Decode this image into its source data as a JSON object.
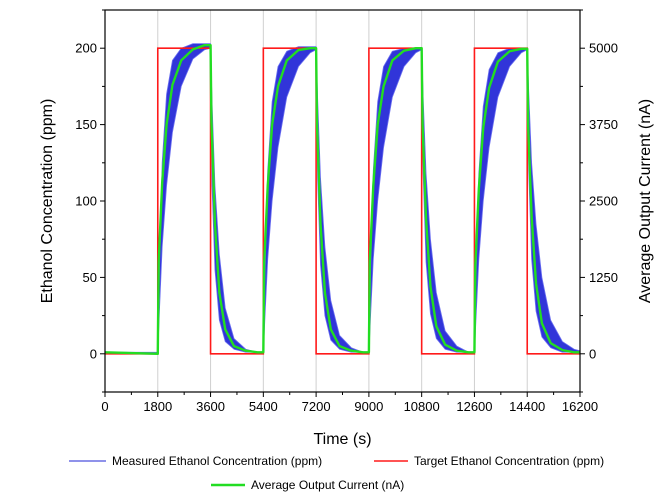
{
  "chart_data": {
    "type": "line",
    "title": "",
    "xlabel": "Time (s)",
    "ylabel": "Ethanol Concentration (ppm)",
    "y2label": "Average Output Current (nA)",
    "xlim": [
      0,
      16200
    ],
    "ylim": [
      -25,
      225
    ],
    "y2lim": [
      -625,
      5625
    ],
    "x_ticks": [
      0,
      1800,
      3600,
      5400,
      7200,
      9000,
      10800,
      12600,
      14400,
      16200
    ],
    "x_tick_labels": [
      "0",
      "1800",
      "3600",
      "5400",
      "7200",
      "9000",
      "10800",
      "12600",
      "14400",
      "16200"
    ],
    "y_ticks": [
      0,
      50,
      100,
      150,
      200
    ],
    "y_tick_labels": [
      "0",
      "50",
      "100",
      "150",
      "200"
    ],
    "y2_ticks": [
      0,
      1250,
      2500,
      3750,
      5000
    ],
    "y2_tick_labels": [
      "0",
      "1250",
      "2500",
      "3750",
      "5000"
    ],
    "grid": true,
    "grid_axis": "x",
    "legend_position": "bottom",
    "series": [
      {
        "name": "Measured Ethanol Concentration (ppm)",
        "color": "#1f24d6",
        "description_type": "band",
        "x": [
          0,
          1800,
          1850,
          1950,
          2100,
          2300,
          2600,
          3000,
          3400,
          3600,
          3650,
          3750,
          3900,
          4100,
          4400,
          4800,
          5200,
          5400,
          5450,
          5550,
          5700,
          5900,
          6200,
          6600,
          7000,
          7200,
          7250,
          7350,
          7500,
          7700,
          8000,
          8400,
          8800,
          9000,
          9050,
          9150,
          9300,
          9500,
          9800,
          10200,
          10600,
          10800,
          10850,
          10950,
          11100,
          11300,
          11600,
          12000,
          12400,
          12600,
          12650,
          12750,
          12900,
          13100,
          13400,
          13800,
          14200,
          14400,
          14450,
          14550,
          14700,
          14900,
          15200,
          15600,
          16000,
          16200
        ],
        "y_low": [
          0,
          0,
          25,
          70,
          110,
          145,
          175,
          193,
          199,
          200,
          165,
          110,
          65,
          30,
          10,
          3,
          1,
          0,
          22,
          62,
          100,
          135,
          168,
          188,
          197,
          199,
          168,
          115,
          70,
          35,
          12,
          4,
          1,
          0,
          22,
          62,
          100,
          135,
          168,
          188,
          197,
          199,
          168,
          118,
          75,
          40,
          15,
          5,
          1,
          0,
          22,
          62,
          100,
          135,
          168,
          188,
          197,
          199,
          172,
          125,
          85,
          50,
          22,
          8,
          3,
          2
        ],
        "y_high": [
          1,
          1,
          48,
          125,
          170,
          192,
          200,
          203,
          203,
          203,
          110,
          55,
          22,
          8,
          3,
          1,
          1,
          1,
          45,
          120,
          165,
          188,
          198,
          201,
          201,
          201,
          115,
          58,
          25,
          9,
          3,
          1,
          1,
          1,
          45,
          120,
          165,
          188,
          198,
          200,
          200,
          200,
          118,
          60,
          26,
          10,
          3,
          1,
          1,
          1,
          45,
          118,
          162,
          186,
          197,
          200,
          200,
          200,
          120,
          62,
          28,
          11,
          4,
          1,
          1,
          1
        ]
      },
      {
        "name": "Target Ethanol Concentration (ppm)",
        "color": "#ff1a1a",
        "x": [
          0,
          1800,
          1800,
          3600,
          3600,
          5400,
          5400,
          7200,
          7200,
          9000,
          9000,
          10800,
          10800,
          12600,
          12600,
          14400,
          14400,
          16200
        ],
        "y": [
          0,
          0,
          200,
          200,
          0,
          0,
          200,
          200,
          0,
          0,
          200,
          200,
          0,
          0,
          200,
          200,
          0,
          0
        ]
      },
      {
        "name": "Average Output Current (nA)",
        "color": "#22dd22",
        "axis": "right",
        "x": [
          0,
          1800,
          1830,
          1950,
          2100,
          2300,
          2600,
          3000,
          3400,
          3600,
          3630,
          3750,
          3900,
          4100,
          4400,
          4800,
          5200,
          5400,
          5430,
          5550,
          5700,
          5900,
          6200,
          6600,
          7000,
          7200,
          7230,
          7350,
          7500,
          7700,
          8000,
          8400,
          8800,
          9000,
          9030,
          9150,
          9300,
          9500,
          9800,
          10200,
          10600,
          10800,
          10830,
          10950,
          11100,
          11300,
          11600,
          12000,
          12400,
          12600,
          12630,
          12750,
          12900,
          13100,
          13400,
          13800,
          14200,
          14400,
          14430,
          14550,
          14700,
          14900,
          15200,
          15600,
          16000,
          16200
        ],
        "y": [
          25,
          0,
          1500,
          2800,
          3750,
          4400,
          4800,
          4980,
          5050,
          5050,
          3800,
          2125,
          1000,
          400,
          125,
          50,
          25,
          25,
          1500,
          2750,
          3750,
          4375,
          4800,
          4970,
          5000,
          5000,
          3750,
          2125,
          1000,
          400,
          125,
          50,
          25,
          25,
          1500,
          2750,
          3750,
          4375,
          4800,
          4960,
          5000,
          5000,
          3750,
          2200,
          1100,
          450,
          150,
          50,
          25,
          25,
          1450,
          2700,
          3700,
          4350,
          4780,
          4950,
          4990,
          4990,
          3750,
          2250,
          1150,
          500,
          175,
          60,
          25,
          25
        ]
      }
    ]
  }
}
